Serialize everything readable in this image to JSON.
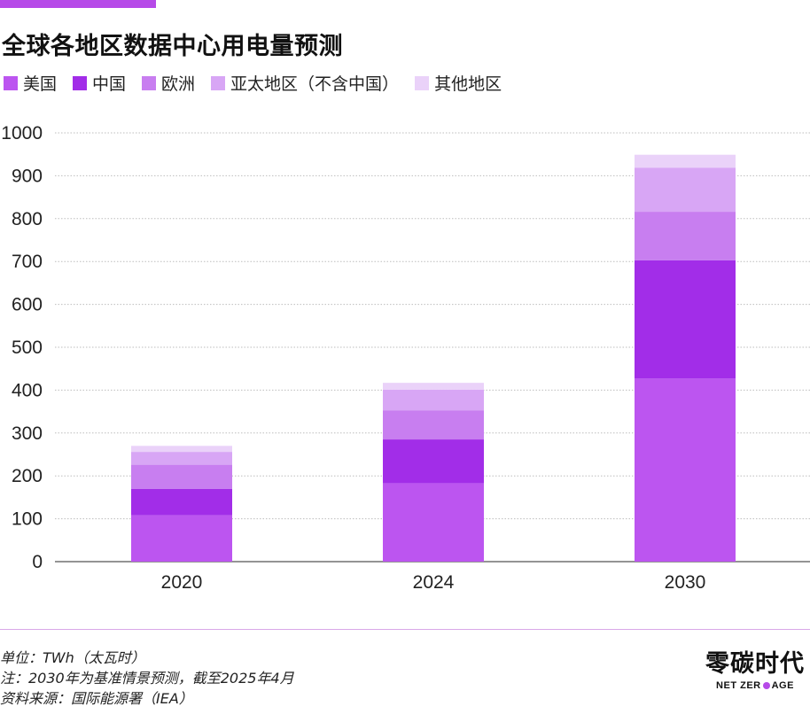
{
  "chart_data": {
    "type": "bar",
    "stacked": true,
    "title": "全球各地区数据中心用电量预测",
    "categories": [
      "2020",
      "2024",
      "2030"
    ],
    "series": [
      {
        "name": "美国",
        "color": "#bc55f0",
        "values": [
          108,
          183,
          427
        ]
      },
      {
        "name": "中国",
        "color": "#a22de8",
        "values": [
          62,
          102,
          276
        ]
      },
      {
        "name": "欧洲",
        "color": "#c87ef0",
        "values": [
          56,
          68,
          113
        ]
      },
      {
        "name": "亚太地区（不含中国）",
        "color": "#d8a6f5",
        "values": [
          30,
          48,
          103
        ]
      },
      {
        "name": "其他地区",
        "color": "#ead2f9",
        "values": [
          14,
          16,
          30
        ]
      }
    ],
    "ylim": [
      0,
      1000
    ],
    "yticks": [
      "0",
      "100",
      "200",
      "300",
      "400",
      "500",
      "600",
      "700",
      "800",
      "900",
      "1000"
    ],
    "grid": true,
    "legend": "top"
  },
  "notes": {
    "unit": "单位：TWh（太瓦时）",
    "note": "注：2030年为基准情景预测，截至2025年4月",
    "source": "资料来源：国际能源署（IEA）"
  },
  "logo": {
    "cn": "零碳时代",
    "en_left": "NET ZER",
    "en_right": "AGE",
    "accent": "#b64ae8"
  }
}
